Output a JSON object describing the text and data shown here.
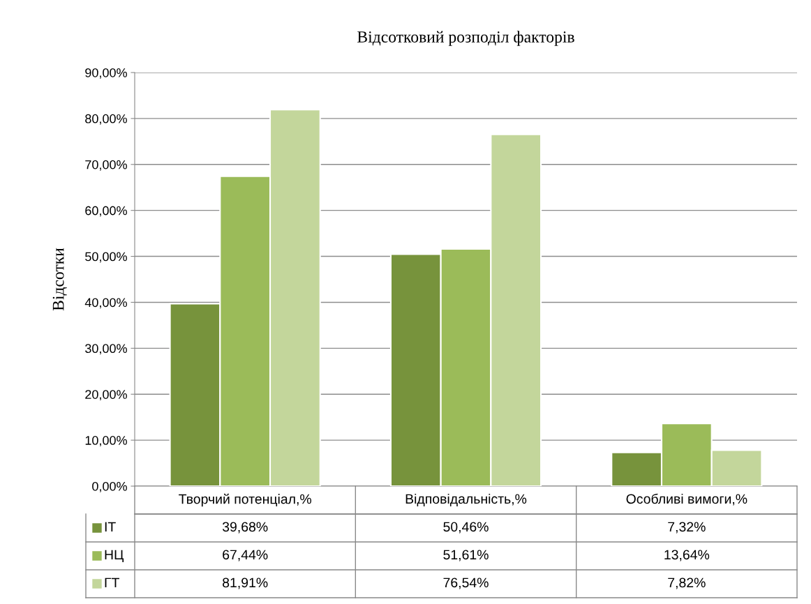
{
  "chart_data": {
    "type": "bar",
    "title": "Відсотковий розподіл факторів",
    "ylabel": "Відсотки",
    "categories": [
      "Творчий потенціал,%",
      "Відповідальність,%",
      "Особливі вимоги,%"
    ],
    "series": [
      {
        "name": "ІТ",
        "color": "#77933c",
        "values": [
          39.68,
          50.46,
          7.32
        ],
        "value_labels": [
          "39,68%",
          "50,46%",
          "7,32%"
        ]
      },
      {
        "name": "НЦ",
        "color": "#9bbb59",
        "values": [
          67.44,
          51.61,
          13.64
        ],
        "value_labels": [
          "67,44%",
          "51,61%",
          "13,64%"
        ]
      },
      {
        "name": "ГТ",
        "color": "#c3d69b",
        "values": [
          81.91,
          76.54,
          7.82
        ],
        "value_labels": [
          "81,91%",
          "76,54%",
          "7,82%"
        ]
      }
    ],
    "ylim": [
      0,
      90
    ],
    "yticks": [
      {
        "value": 0,
        "label": "0,00%"
      },
      {
        "value": 10,
        "label": "10,00%"
      },
      {
        "value": 20,
        "label": "20,00%"
      },
      {
        "value": 30,
        "label": "30,00%"
      },
      {
        "value": 40,
        "label": "40,00%"
      },
      {
        "value": 50,
        "label": "50,00%"
      },
      {
        "value": 60,
        "label": "60,00%"
      },
      {
        "value": 70,
        "label": "70,00%"
      },
      {
        "value": 80,
        "label": "80,00%"
      },
      {
        "value": 90,
        "label": "90,00%"
      }
    ],
    "grid": "y",
    "legend": "bottom"
  }
}
